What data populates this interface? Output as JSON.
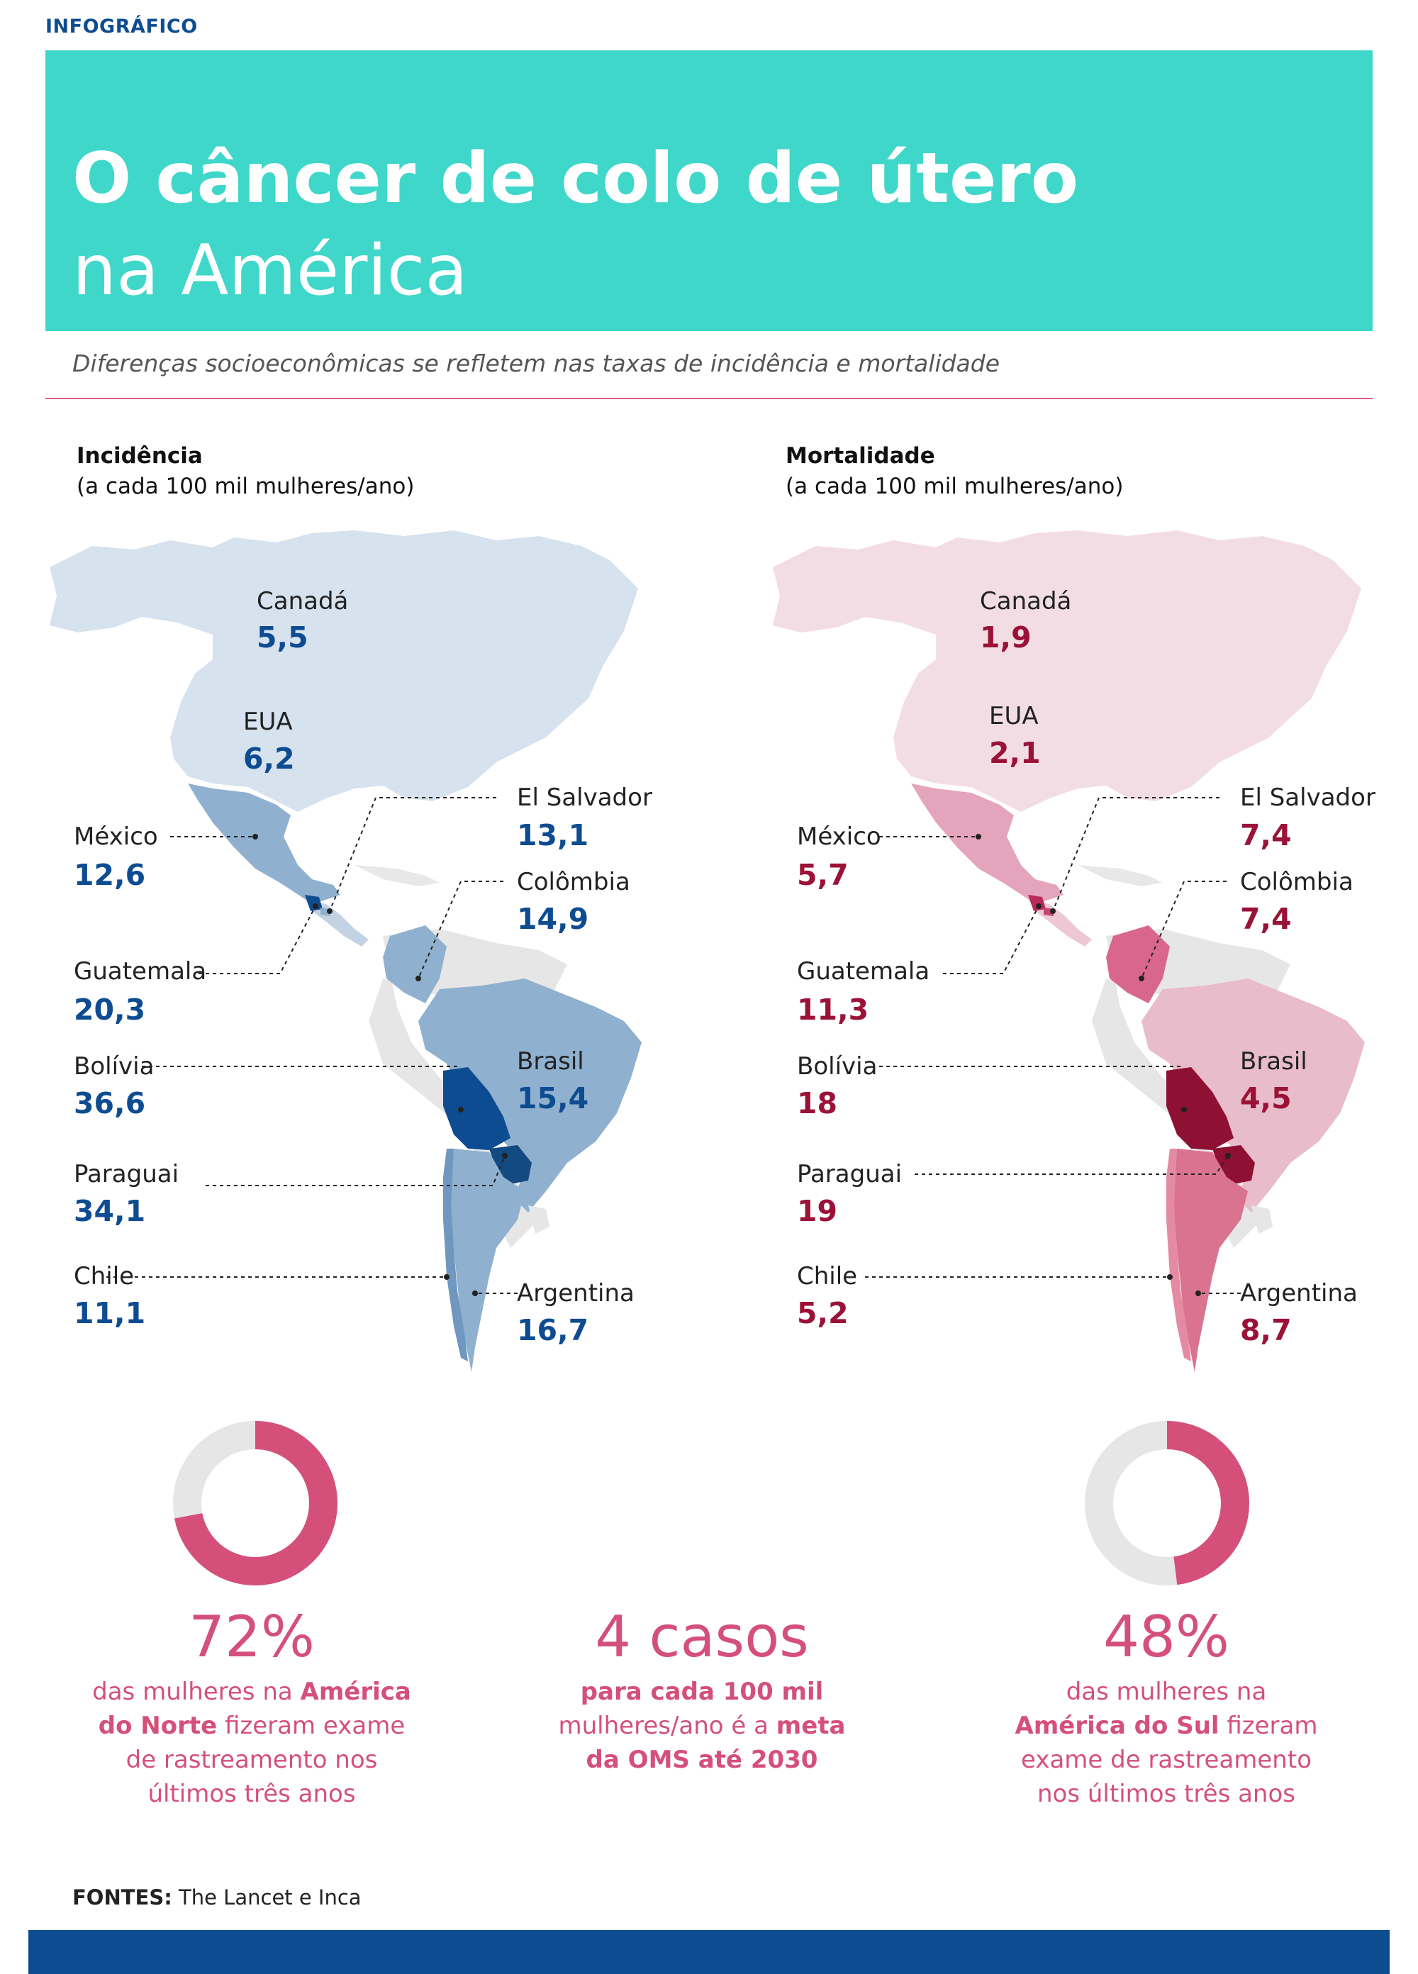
{
  "header": {
    "kicker": "INFOGRÁFICO",
    "title_line1": "O câncer de colo de útero",
    "title_line2": "na América",
    "subtitle": "Diferenças socioeconômicas se refletem nas taxas de incidência e mortalidade"
  },
  "colors": {
    "banner": "#3fd7c9",
    "accent_pink": "#d4507a",
    "incidence_blue": "#0e4c92",
    "mortality_red": "#9b1238"
  },
  "incidence": {
    "heading": "Incidência",
    "unit": "(a cada 100 mil mulheres/ano)",
    "countries": [
      {
        "name": "Canadá",
        "value": "5,5"
      },
      {
        "name": "EUA",
        "value": "6,2"
      },
      {
        "name": "México",
        "value": "12,6"
      },
      {
        "name": "El Salvador",
        "value": "13,1"
      },
      {
        "name": "Colômbia",
        "value": "14,9"
      },
      {
        "name": "Guatemala",
        "value": "20,3"
      },
      {
        "name": "Bolívia",
        "value": "36,6"
      },
      {
        "name": "Brasil",
        "value": "15,4"
      },
      {
        "name": "Paraguai",
        "value": "34,1"
      },
      {
        "name": "Chile",
        "value": "11,1"
      },
      {
        "name": "Argentina",
        "value": "16,7"
      }
    ]
  },
  "mortality": {
    "heading": "Mortalidade",
    "unit": "(a cada 100 mil mulheres/ano)",
    "countries": [
      {
        "name": "Canadá",
        "value": "1,9"
      },
      {
        "name": "EUA",
        "value": "2,1"
      },
      {
        "name": "México",
        "value": "5,7"
      },
      {
        "name": "El Salvador",
        "value": "7,4"
      },
      {
        "name": "Colômbia",
        "value": "7,4"
      },
      {
        "name": "Guatemala",
        "value": "11,3"
      },
      {
        "name": "Bolívia",
        "value": "18"
      },
      {
        "name": "Brasil",
        "value": "4,5"
      },
      {
        "name": "Paraguai",
        "value": "19"
      },
      {
        "name": "Chile",
        "value": "5,2"
      },
      {
        "name": "Argentina",
        "value": "8,7"
      }
    ]
  },
  "stats": {
    "north": {
      "fraction": 0.72,
      "big": "72%",
      "t1": "das mulheres na ",
      "b1": "América",
      "b2": "do Norte",
      "t2": " fizeram exame",
      "t3": "de rastreamento nos",
      "t4": "últimos três anos"
    },
    "goal": {
      "big": "4 casos",
      "b1": "para cada 100 mil",
      "t1": "mulheres/ano é a ",
      "b2": "meta",
      "b3": "da OMS até 2030"
    },
    "south": {
      "fraction": 0.48,
      "big": "48%",
      "t1": "das mulheres na",
      "b1": "América do Sul",
      "t2": " fizeram",
      "t3": "exame de rastreamento",
      "t4": "nos últimos três anos"
    }
  },
  "sources": {
    "label": "FONTES:",
    "text": "The Lancet e Inca"
  }
}
